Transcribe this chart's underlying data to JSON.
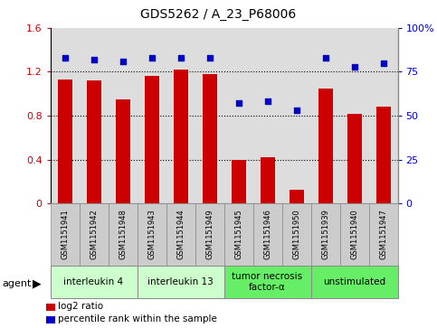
{
  "title": "GDS5262 / A_23_P68006",
  "samples": [
    "GSM1151941",
    "GSM1151942",
    "GSM1151948",
    "GSM1151943",
    "GSM1151944",
    "GSM1151949",
    "GSM1151945",
    "GSM1151946",
    "GSM1151950",
    "GSM1151939",
    "GSM1151940",
    "GSM1151947"
  ],
  "log2_ratio": [
    1.13,
    1.12,
    0.95,
    1.16,
    1.22,
    1.18,
    0.4,
    0.42,
    0.12,
    1.05,
    0.82,
    0.88
  ],
  "percentile_rank": [
    83,
    82,
    81,
    83,
    83,
    83,
    57,
    58,
    53,
    83,
    78,
    80
  ],
  "bar_color": "#cc0000",
  "dot_color": "#0000cc",
  "ylim_left": [
    0,
    1.6
  ],
  "ylim_right": [
    0,
    100
  ],
  "yticks_left": [
    0,
    0.4,
    0.8,
    1.2,
    1.6
  ],
  "ytick_labels_left": [
    "0",
    "0.4",
    "0.8",
    "1.2",
    "1.6"
  ],
  "yticks_right": [
    0,
    25,
    50,
    75,
    100
  ],
  "ytick_labels_right": [
    "0",
    "25",
    "50",
    "75",
    "100%"
  ],
  "groups": [
    {
      "label": "interleukin 4",
      "indices": [
        0,
        1,
        2
      ],
      "color": "#ccffcc",
      "border": "#aaaaaa"
    },
    {
      "label": "interleukin 13",
      "indices": [
        3,
        4,
        5
      ],
      "color": "#ccffcc",
      "border": "#aaaaaa"
    },
    {
      "label": "tumor necrosis\nfactor-α",
      "indices": [
        6,
        7,
        8
      ],
      "color": "#66ee66",
      "border": "#aaaaaa"
    },
    {
      "label": "unstimulated",
      "indices": [
        9,
        10,
        11
      ],
      "color": "#66ee66",
      "border": "#aaaaaa"
    }
  ],
  "legend_items": [
    {
      "color": "#cc0000",
      "label": "log2 ratio"
    },
    {
      "color": "#0000cc",
      "label": "percentile rank within the sample"
    }
  ],
  "agent_label": "agent",
  "tick_label_color_left": "#cc0000",
  "tick_label_color_right": "#0000cc",
  "plot_bg": "#dddddd",
  "title_fontsize": 10,
  "bar_width": 0.5
}
